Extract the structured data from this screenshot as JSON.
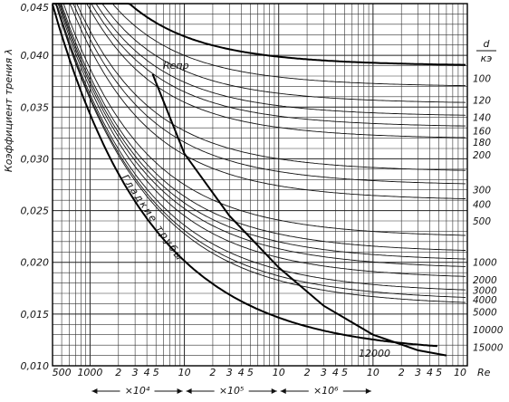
{
  "chart_data": {
    "type": "line",
    "x_scale": "log",
    "xlim": [
      400,
      10000000
    ],
    "ylim": [
      0.01,
      0.045
    ],
    "grid": true,
    "ylabel": "Коэффициент трения λ",
    "xlabel": "Re",
    "right_axis_label_numerator": "d",
    "right_axis_label_denominator": "кэ",
    "y_ticks": [
      {
        "value": 0.01,
        "label": "0,010"
      },
      {
        "value": 0.015,
        "label": "0,015"
      },
      {
        "value": 0.02,
        "label": "0,020"
      },
      {
        "value": 0.025,
        "label": "0,025"
      },
      {
        "value": 0.03,
        "label": "0,030"
      },
      {
        "value": 0.035,
        "label": "0,035"
      },
      {
        "value": 0.04,
        "label": "0,040"
      },
      {
        "value": 0.045,
        "label": "0,045"
      }
    ],
    "x_ticks": [
      {
        "value": 500,
        "label": "500"
      },
      {
        "value": 1000,
        "label": "1000"
      },
      {
        "value": 2000,
        "label": "2"
      },
      {
        "value": 3000,
        "label": "3"
      },
      {
        "value": 4000,
        "label": "4"
      },
      {
        "value": 5000,
        "label": "5"
      },
      {
        "value": 10000,
        "label": "10"
      },
      {
        "value": 20000,
        "label": "2"
      },
      {
        "value": 30000,
        "label": "3"
      },
      {
        "value": 40000,
        "label": "4"
      },
      {
        "value": 50000,
        "label": "5"
      },
      {
        "value": 100000,
        "label": "10"
      },
      {
        "value": 200000,
        "label": "2"
      },
      {
        "value": 300000,
        "label": "3"
      },
      {
        "value": 400000,
        "label": "4"
      },
      {
        "value": 500000,
        "label": "5"
      },
      {
        "value": 1000000,
        "label": "10"
      },
      {
        "value": 2000000,
        "label": "2"
      },
      {
        "value": 3000000,
        "label": "3"
      },
      {
        "value": 4000000,
        "label": "4"
      },
      {
        "value": 5000000,
        "label": "5"
      },
      {
        "value": 10000000,
        "label": "10"
      }
    ],
    "decade_multipliers": [
      {
        "from": 1000,
        "to": 10000,
        "label": "×10⁴"
      },
      {
        "from": 10000,
        "to": 100000,
        "label": "×10⁵"
      },
      {
        "from": 100000,
        "to": 1000000,
        "label": "×10⁶"
      }
    ],
    "smooth_pipe_label": "Гладкие трубы",
    "re_limit_label": "Reпр",
    "curve_label_12000": "12000",
    "series": [
      {
        "name": "100",
        "asymptote": 0.0378
      },
      {
        "name": "120",
        "asymptote": 0.0357
      },
      {
        "name": "140",
        "asymptote": 0.034
      },
      {
        "name": "160",
        "asymptote": 0.0327
      },
      {
        "name": "180",
        "asymptote": 0.0316
      },
      {
        "name": "200",
        "asymptote": 0.0304
      },
      {
        "name": "300",
        "asymptote": 0.027
      },
      {
        "name": "400",
        "asymptote": 0.0256
      },
      {
        "name": "500",
        "asymptote": 0.024
      },
      {
        "name": "1000",
        "asymptote": 0.02
      },
      {
        "name": "2000",
        "asymptote": 0.0183
      },
      {
        "name": "3000",
        "asymptote": 0.0173
      },
      {
        "name": "4000",
        "asymptote": 0.0164
      },
      {
        "name": "5000",
        "asymptote": 0.0152
      },
      {
        "name": "10000",
        "asymptote": 0.0135
      },
      {
        "name": "12000",
        "asymptote": 0.0125
      },
      {
        "name": "15000",
        "asymptote": 0.0118
      }
    ]
  }
}
